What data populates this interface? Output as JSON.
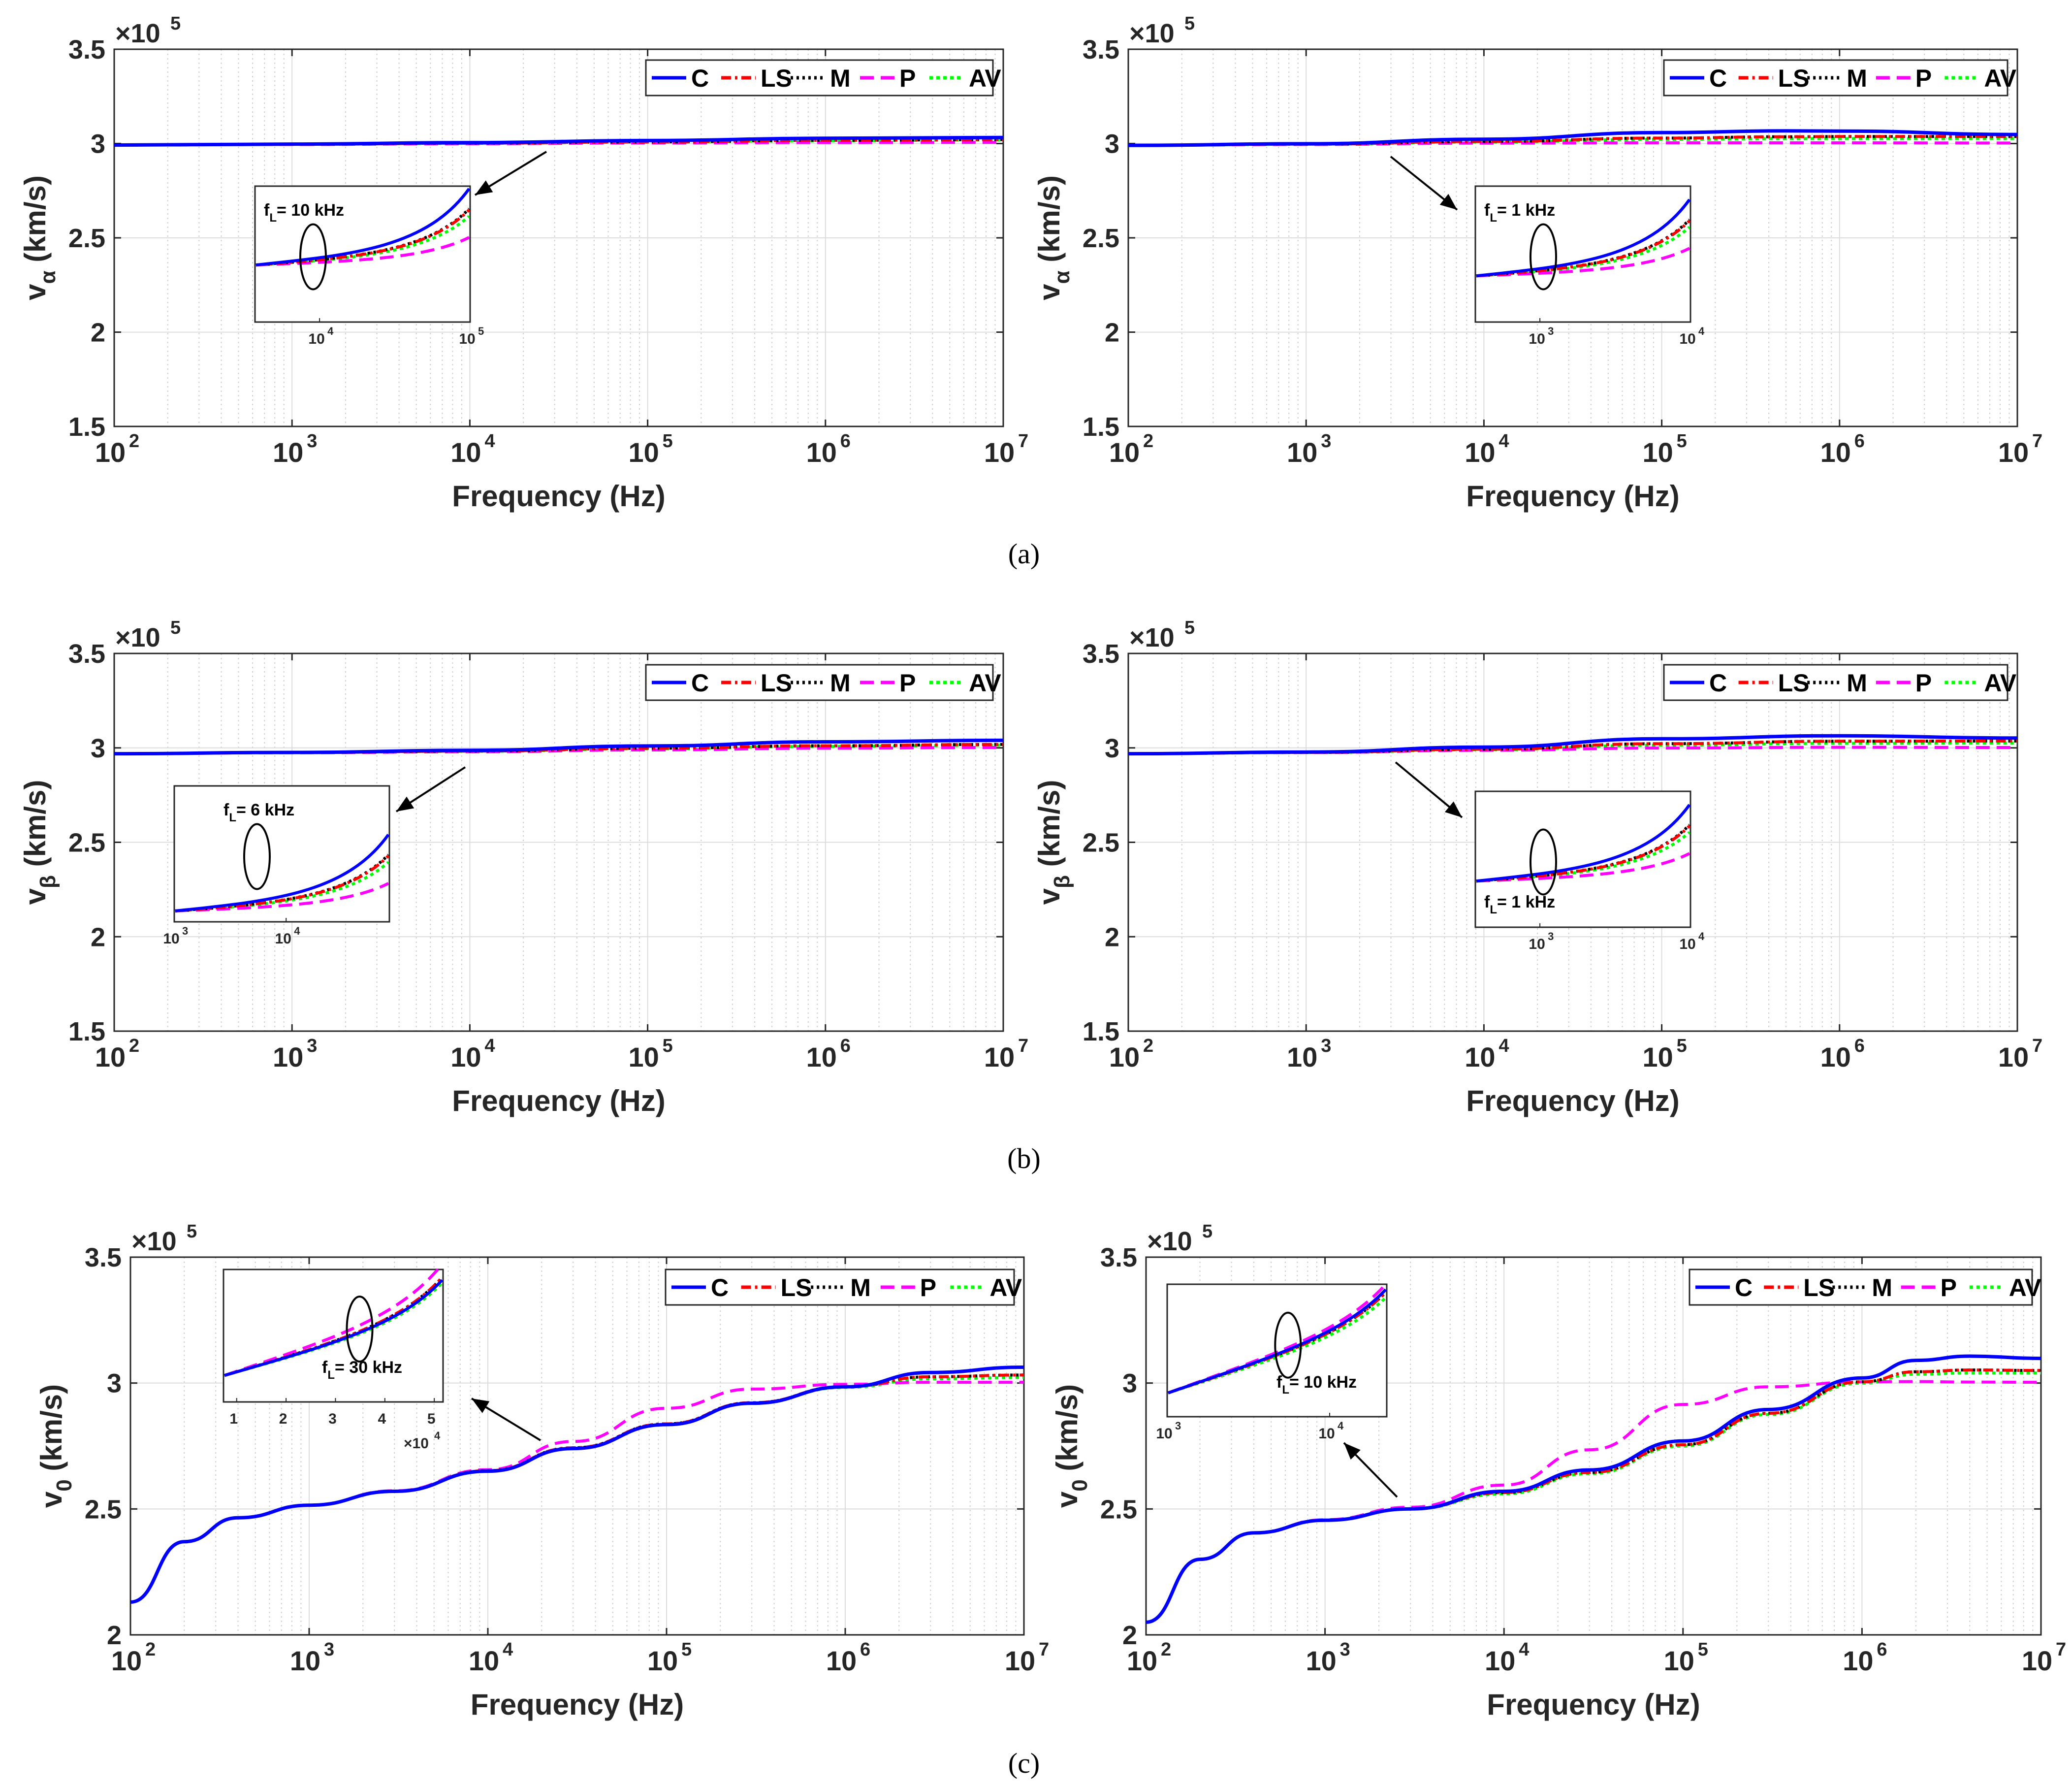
{
  "figure": {
    "captions": [
      "(a)",
      "(b)",
      "(c)"
    ]
  },
  "legend_entries": [
    "C",
    "LS",
    "M",
    "P",
    "AV"
  ],
  "colors": {
    "C": "#0000ff",
    "LS": "#ff0000",
    "M": "#000000",
    "P": "#ff00ff",
    "AV": "#00ff00"
  },
  "chart_data": [
    {
      "id": "a-left",
      "type": "line",
      "xscale": "log",
      "xlim": [
        100,
        10000000
      ],
      "ylim": [
        150000,
        350000
      ],
      "xlabel": "Frequency (Hz)",
      "ylabel_main": "v",
      "ylabel_sub": "α",
      "ylabel_unit": " (km/s)",
      "yticks": [
        "1.5",
        "2",
        "2.5",
        "3",
        "3.5"
      ],
      "yticks_values": [
        150000,
        200000,
        250000,
        300000,
        350000
      ],
      "xticks": [
        "10",
        "10",
        "10",
        "10",
        "10",
        "10"
      ],
      "xticks_exp": [
        "2",
        "3",
        "4",
        "5",
        "6",
        "7"
      ],
      "exponent_label": "×10",
      "exponent_power": "5",
      "x": [
        100,
        1000,
        10000,
        100000,
        1000000,
        10000000
      ],
      "series": [
        {
          "name": "C",
          "values": [
            299200,
            299700,
            300500,
            301600,
            302800,
            303200
          ]
        },
        {
          "name": "LS",
          "values": [
            299200,
            299600,
            300200,
            300900,
            301700,
            302100
          ]
        },
        {
          "name": "M",
          "values": [
            299200,
            299600,
            300200,
            300900,
            301700,
            302100
          ]
        },
        {
          "name": "P",
          "values": [
            299200,
            299500,
            299900,
            300300,
            300500,
            300600
          ]
        },
        {
          "name": "AV",
          "values": [
            299200,
            299600,
            300100,
            300800,
            301500,
            301900
          ]
        }
      ],
      "inset": {
        "label": "f",
        "label_sub": "L",
        "label_rest": "= 10 kHz",
        "xticks": [
          "10",
          "10"
        ],
        "xticks_exp": [
          "4",
          "5"
        ]
      }
    },
    {
      "id": "a-right",
      "type": "line",
      "xscale": "log",
      "xlim": [
        100,
        10000000
      ],
      "ylim": [
        150000,
        350000
      ],
      "xlabel": "Frequency (Hz)",
      "ylabel_main": "v",
      "ylabel_sub": "α",
      "ylabel_unit": " (km/s)",
      "yticks": [
        "1.5",
        "2",
        "2.5",
        "3",
        "3.5"
      ],
      "yticks_values": [
        150000,
        200000,
        250000,
        300000,
        350000
      ],
      "xticks": [
        "10",
        "10",
        "10",
        "10",
        "10",
        "10"
      ],
      "xticks_exp": [
        "2",
        "3",
        "4",
        "5",
        "6",
        "7"
      ],
      "exponent_label": "×10",
      "exponent_power": "5",
      "x": [
        100,
        1000,
        10000,
        100000,
        500000,
        1000000,
        10000000
      ],
      "series": [
        {
          "name": "C",
          "values": [
            299000,
            299900,
            302300,
            305800,
            306700,
            306600,
            304800
          ]
        },
        {
          "name": "LS",
          "values": [
            299000,
            299700,
            301100,
            302900,
            303600,
            303700,
            303700
          ]
        },
        {
          "name": "M",
          "values": [
            299000,
            299700,
            301100,
            302900,
            303600,
            303700,
            303700
          ]
        },
        {
          "name": "P",
          "values": [
            299000,
            299500,
            300200,
            300400,
            300400,
            300400,
            300300
          ]
        },
        {
          "name": "AV",
          "values": [
            299000,
            299600,
            300800,
            302200,
            302600,
            302600,
            302600
          ]
        }
      ],
      "inset": {
        "label": "f",
        "label_sub": "L",
        "label_rest": "= 1 kHz",
        "xticks": [
          "10",
          "10"
        ],
        "xticks_exp": [
          "3",
          "4"
        ]
      }
    },
    {
      "id": "b-left",
      "type": "line",
      "xscale": "log",
      "xlim": [
        100,
        10000000
      ],
      "ylim": [
        150000,
        350000
      ],
      "xlabel": "Frequency (Hz)",
      "ylabel_main": "v",
      "ylabel_sub": "β",
      "ylabel_unit": " (km/s)",
      "yticks": [
        "1.5",
        "2",
        "2.5",
        "3",
        "3.5"
      ],
      "yticks_values": [
        150000,
        200000,
        250000,
        300000,
        350000
      ],
      "xticks": [
        "10",
        "10",
        "10",
        "10",
        "10",
        "10"
      ],
      "xticks_exp": [
        "2",
        "3",
        "4",
        "5",
        "6",
        "7"
      ],
      "exponent_label": "×10",
      "exponent_power": "5",
      "x": [
        100,
        1000,
        10000,
        100000,
        1000000,
        10000000
      ],
      "series": [
        {
          "name": "C",
          "values": [
            296900,
            297600,
            298700,
            301000,
            303200,
            304000
          ]
        },
        {
          "name": "LS",
          "values": [
            296900,
            297500,
            298300,
            299800,
            301100,
            301800
          ]
        },
        {
          "name": "M",
          "values": [
            296900,
            297500,
            298300,
            299800,
            301100,
            301800
          ]
        },
        {
          "name": "P",
          "values": [
            296900,
            297400,
            297900,
            298900,
            299800,
            300200
          ]
        },
        {
          "name": "AV",
          "values": [
            296900,
            297500,
            298200,
            299500,
            300800,
            301400
          ]
        }
      ],
      "inset": {
        "label": "f",
        "label_sub": "L",
        "label_rest": "= 6 kHz",
        "xticks": [
          "10",
          "10"
        ],
        "xticks_exp": [
          "3",
          "4"
        ]
      }
    },
    {
      "id": "b-right",
      "type": "line",
      "xscale": "log",
      "xlim": [
        100,
        10000000
      ],
      "ylim": [
        150000,
        350000
      ],
      "xlabel": "Frequency (Hz)",
      "ylabel_main": "v",
      "ylabel_sub": "β",
      "ylabel_unit": " (km/s)",
      "yticks": [
        "1.5",
        "2",
        "2.5",
        "3",
        "3.5"
      ],
      "yticks_values": [
        150000,
        200000,
        250000,
        300000,
        350000
      ],
      "xticks": [
        "10",
        "10",
        "10",
        "10",
        "10",
        "10"
      ],
      "xticks_exp": [
        "2",
        "3",
        "4",
        "5",
        "6",
        "7"
      ],
      "exponent_label": "×10",
      "exponent_power": "5",
      "x": [
        100,
        1000,
        10000,
        100000,
        1000000,
        10000000
      ],
      "series": [
        {
          "name": "C",
          "values": [
            296900,
            297800,
            300400,
            304800,
            306400,
            305200
          ]
        },
        {
          "name": "LS",
          "values": [
            296900,
            297600,
            299300,
            302200,
            303500,
            303600
          ]
        },
        {
          "name": "M",
          "values": [
            296900,
            297600,
            299300,
            302200,
            303500,
            303600
          ]
        },
        {
          "name": "P",
          "values": [
            296900,
            297500,
            298700,
            299900,
            300300,
            300200
          ]
        },
        {
          "name": "AV",
          "values": [
            296900,
            297500,
            299000,
            301400,
            302400,
            302500
          ]
        }
      ],
      "inset": {
        "label": "f",
        "label_sub": "L",
        "label_rest": "= 1 kHz",
        "xticks": [
          "10",
          "10"
        ],
        "xticks_exp": [
          "3",
          "4"
        ]
      }
    },
    {
      "id": "c-left",
      "type": "line",
      "xscale": "log",
      "xlim": [
        100,
        10000000
      ],
      "ylim": [
        200000,
        350000
      ],
      "xlabel": "Frequency (Hz)",
      "ylabel_main": "v",
      "ylabel_sub": "0",
      "ylabel_unit": " (km/s)",
      "yticks": [
        "2",
        "2.5",
        "3",
        "3.5"
      ],
      "yticks_values": [
        200000,
        250000,
        300000,
        350000
      ],
      "xticks": [
        "10",
        "10",
        "10",
        "10",
        "10",
        "10"
      ],
      "xticks_exp": [
        "2",
        "3",
        "4",
        "5",
        "6",
        "7"
      ],
      "exponent_label": "×10",
      "exponent_power": "5",
      "x": [
        100,
        200,
        400,
        1000,
        3000,
        10000,
        30000,
        100000,
        300000,
        1000000,
        3000000,
        10000000
      ],
      "series": [
        {
          "name": "C",
          "values": [
            213000,
            237000,
            246500,
            251500,
            257000,
            265000,
            274000,
            283500,
            292000,
            298500,
            304200,
            306300
          ]
        },
        {
          "name": "LS",
          "values": [
            213000,
            237000,
            246500,
            251500,
            257000,
            265200,
            274300,
            283800,
            292200,
            298600,
            302500,
            303200
          ]
        },
        {
          "name": "M",
          "values": [
            213000,
            237000,
            246500,
            251500,
            257000,
            265200,
            274300,
            283800,
            292200,
            298600,
            302500,
            303200
          ]
        },
        {
          "name": "P",
          "values": [
            213000,
            237000,
            246500,
            251500,
            257200,
            265600,
            276800,
            290000,
            297600,
            299500,
            300300,
            300300
          ]
        },
        {
          "name": "AV",
          "values": [
            213000,
            237000,
            246500,
            251500,
            257000,
            265000,
            274100,
            283600,
            292000,
            298300,
            301700,
            302200
          ]
        }
      ],
      "inset": {
        "label": "f",
        "label_sub": "L",
        "label_rest": "= 30 kHz",
        "xticks": [
          "1",
          "2",
          "3",
          "4",
          "5"
        ],
        "exponent_label": "×10",
        "exponent_power": "4"
      }
    },
    {
      "id": "c-right",
      "type": "line",
      "xscale": "log",
      "xlim": [
        100,
        10000000
      ],
      "ylim": [
        200000,
        350000
      ],
      "xlabel": "Frequency (Hz)",
      "ylabel_main": "v",
      "ylabel_sub": "0",
      "ylabel_unit": " (km/s)",
      "yticks": [
        "2",
        "2.5",
        "3",
        "3.5"
      ],
      "yticks_values": [
        200000,
        250000,
        300000,
        350000
      ],
      "xticks": [
        "10",
        "10",
        "10",
        "10",
        "10",
        "10"
      ],
      "xticks_exp": [
        "2",
        "3",
        "4",
        "5",
        "6",
        "7"
      ],
      "exponent_label": "×10",
      "exponent_power": "5",
      "x": [
        100,
        200,
        400,
        1000,
        3000,
        10000,
        30000,
        100000,
        300000,
        1000000,
        2000000,
        4000000,
        10000000
      ],
      "series": [
        {
          "name": "C",
          "values": [
            205000,
            230000,
            240500,
            245500,
            250000,
            257000,
            265500,
            277000,
            289500,
            302000,
            309000,
            310700,
            309800
          ]
        },
        {
          "name": "LS",
          "values": [
            205000,
            230000,
            240500,
            245500,
            250000,
            256500,
            264500,
            275500,
            288000,
            300500,
            304500,
            305200,
            305000
          ]
        },
        {
          "name": "M",
          "values": [
            205000,
            230000,
            240500,
            245500,
            250000,
            256500,
            264500,
            275500,
            288000,
            300500,
            304500,
            305200,
            305000
          ]
        },
        {
          "name": "P",
          "values": [
            205000,
            230000,
            240500,
            245700,
            250700,
            259500,
            273500,
            291500,
            298500,
            300500,
            300600,
            300400,
            300300
          ]
        },
        {
          "name": "AV",
          "values": [
            205000,
            230000,
            240500,
            245500,
            250000,
            256000,
            264000,
            275000,
            287500,
            300000,
            303500,
            304000,
            304000
          ]
        }
      ],
      "inset": {
        "label": "f",
        "label_sub": "L",
        "label_rest": "= 10 kHz",
        "xticks": [
          "10",
          "10"
        ],
        "xticks_exp": [
          "3",
          "4"
        ]
      }
    }
  ]
}
